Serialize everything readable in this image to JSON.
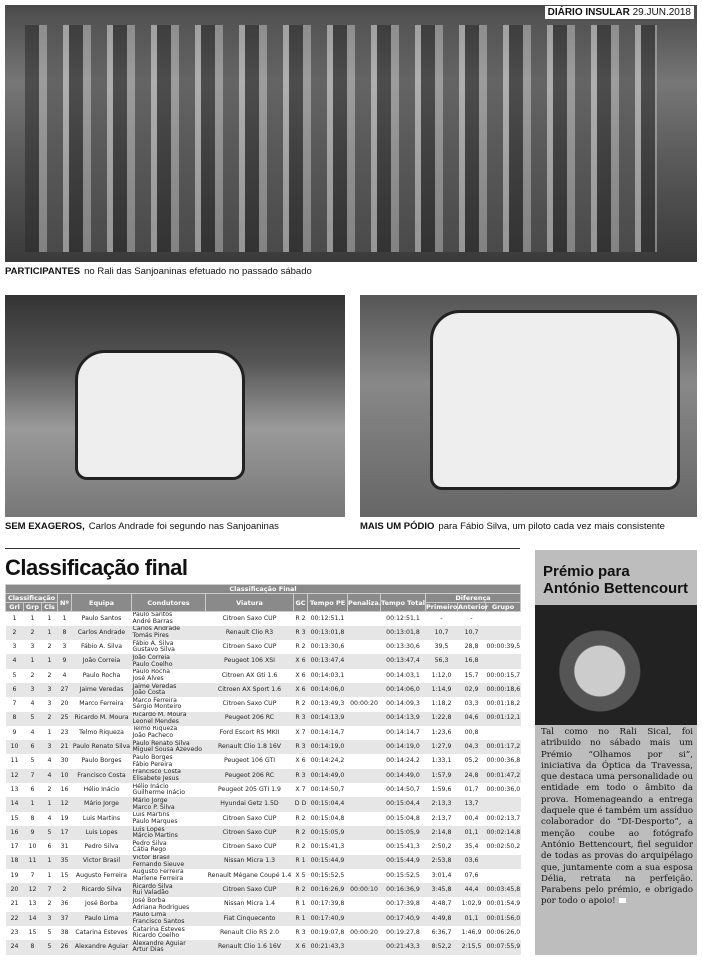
{
  "masthead": {
    "name": "DIÁRIO INSULAR",
    "date": "29.JUN.2018"
  },
  "captions": {
    "top": {
      "lead": "PARTICIPANTES",
      "text": "no Rali das Sanjoaninas efetuado no passado sábado"
    },
    "left": {
      "lead": "SEM EXAGEROS,",
      "text": "Carlos Andrade foi segundo nas Sanjoaninas"
    },
    "right": {
      "lead": "MAIS UM PÓDIO",
      "text": "para Fábio Silva, um piloto cada vez mais consistente"
    }
  },
  "section_title": "Classificação final",
  "table": {
    "title": "Classificação Final",
    "group_headers": {
      "classificacao": "Classificação",
      "diferenca": "Diferença"
    },
    "headers": [
      "Grl",
      "Grp",
      "Cls",
      "Nº",
      "Equipa",
      "Condutores",
      "Viatura",
      "GC",
      "Tempo PE",
      "Penaliza.",
      "Tempo Total",
      "Primeiro",
      "Anterior",
      "Grupo"
    ],
    "rows": [
      [
        "1",
        "1",
        "1",
        "1",
        "Paulo Santos",
        "Paulo Santos|André Barras",
        "Citroen Saxo CUP",
        "R 2",
        "00:12:51,1",
        "",
        "00:12:51,1",
        "-",
        "-",
        ""
      ],
      [
        "2",
        "2",
        "1",
        "8",
        "Carlos Andrade",
        "Carlos Andrade|Tomás Pires",
        "Renault Clio R3",
        "R 3",
        "00:13:01,8",
        "",
        "00:13:01,8",
        "10,7",
        "10,7",
        ""
      ],
      [
        "3",
        "3",
        "2",
        "3",
        "Fábio A. Silva",
        "Fábio A. Silva|Gustavo Silva",
        "Citroen Saxo CUP",
        "R 2",
        "00:13:30,6",
        "",
        "00:13:30,6",
        "39,5",
        "28,8",
        "00:00:39,5"
      ],
      [
        "4",
        "1",
        "1",
        "9",
        "João Correia",
        "João Correia|Paulo Coelho",
        "Peugeot 106 XSI",
        "X 6",
        "00:13:47,4",
        "",
        "00:13:47,4",
        "56,3",
        "16,8",
        ""
      ],
      [
        "5",
        "2",
        "2",
        "4",
        "Paulo Rocha",
        "Paulo Rocha|José Alves",
        "Citroen AX Gti 1.6",
        "X 6",
        "00:14:03,1",
        "",
        "00:14:03,1",
        "1:12,0",
        "15,7",
        "00:00:15,7"
      ],
      [
        "6",
        "3",
        "3",
        "27",
        "Jaime Veredas",
        "Jaime Veredas|João Costa",
        "Citroen AX Sport 1.6",
        "X 6",
        "00:14:06,0",
        "",
        "00:14:06,0",
        "1:14,9",
        "02,9",
        "00:00:18,6"
      ],
      [
        "7",
        "4",
        "3",
        "20",
        "Marco Ferreira",
        "Marco Ferreira|Sérgio Monteiro",
        "Citroen Saxo CUP",
        "R 2",
        "00:13:49,3",
        "00:00:20",
        "00:14:09,3",
        "1:18,2",
        "03,3",
        "00:01:18,2"
      ],
      [
        "8",
        "5",
        "2",
        "25",
        "Ricardo M. Moura",
        "Ricardo M. Moura|Leonel Mendes",
        "Peugeot 206 RC",
        "R 3",
        "00:14:13,9",
        "",
        "00:14:13,9",
        "1:22,8",
        "04,6",
        "00:01:12,1"
      ],
      [
        "9",
        "4",
        "1",
        "23",
        "Telmo Riqueza",
        "Telmo Riqueza|João Pacheco",
        "Ford Escort RS MKII",
        "X 7",
        "00:14:14,7",
        "",
        "00:14:14,7",
        "1:23,6",
        "00,8",
        ""
      ],
      [
        "10",
        "6",
        "3",
        "21",
        "Paulo Renato Silva",
        "Paulo Renato Silva|Miguel Sousa Azevedo",
        "Renault Clio 1.8 16V",
        "R 3",
        "00:14:19,0",
        "",
        "00:14:19,0",
        "1:27,9",
        "04,3",
        "00:01:17,2"
      ],
      [
        "11",
        "5",
        "4",
        "30",
        "Paulo Borges",
        "Paulo Borges|Fábio Pereira",
        "Peugeot 106 GTI",
        "X 6",
        "00:14:24,2",
        "",
        "00:14:24,2",
        "1:33,1",
        "05,2",
        "00:00:36,8"
      ],
      [
        "12",
        "7",
        "4",
        "10",
        "Francisco Costa",
        "Francisco Costa|Elisabete Jesus",
        "Peugeot 206 RC",
        "R 3",
        "00:14:49,0",
        "",
        "00:14:49,0",
        "1:57,9",
        "24,8",
        "00:01:47,2"
      ],
      [
        "13",
        "6",
        "2",
        "16",
        "Hélio Inácio",
        "Hélio Inácio|Guilherme Inácio",
        "Peugeot 205 GTI 1.9",
        "X 7",
        "00:14:50,7",
        "",
        "00:14:50,7",
        "1:59,6",
        "01,7",
        "00:00:36,0"
      ],
      [
        "14",
        "1",
        "1",
        "12",
        "Mário Jorge",
        "Mário Jorge|Marco P. Silva",
        "Hyundai Getz 1.5D",
        "D D",
        "00:15:04,4",
        "",
        "00:15:04,4",
        "2:13,3",
        "13,7",
        ""
      ],
      [
        "15",
        "8",
        "4",
        "19",
        "Luis Martins",
        "Luis Martins|Paulo Marques",
        "Citroen Saxo CUP",
        "R 2",
        "00:15:04,8",
        "",
        "00:15:04,8",
        "2:13,7",
        "00,4",
        "00:02:13,7"
      ],
      [
        "16",
        "9",
        "5",
        "17",
        "Luis Lopes",
        "Luis Lopes|Márcio Martins",
        "Citroen Saxo CUP",
        "R 2",
        "00:15:05,9",
        "",
        "00:15:05,9",
        "2:14,8",
        "01,1",
        "00:02:14,8"
      ],
      [
        "17",
        "10",
        "6",
        "31",
        "Pedro Silva",
        "Pedro Silva|Cátia Rego",
        "Citroen Saxo CUP",
        "R 2",
        "00:15:41,3",
        "",
        "00:15:41,3",
        "2:50,2",
        "35,4",
        "00:02:50,2"
      ],
      [
        "18",
        "11",
        "1",
        "35",
        "Victor Brasil",
        "Victor Brasil|Fernando Sieuve",
        "Nissan Micra 1.3",
        "R 1",
        "00:15:44,9",
        "",
        "00:15:44,9",
        "2:53,8",
        "03,6",
        ""
      ],
      [
        "19",
        "7",
        "1",
        "15",
        "Augusto Ferreira",
        "Augusto Ferreira|Marlene Ferreira",
        "Renault Mégane Coupé 1.4",
        "X 5",
        "00:15:52,5",
        "",
        "00:15:52,5",
        "3:01,4",
        "07,6",
        ""
      ],
      [
        "20",
        "12",
        "7",
        "2",
        "Ricardo Silva",
        "Ricardo Silva|Rui Valadão",
        "Citroen Saxo CUP",
        "R 2",
        "00:16:26,9",
        "00:00:10",
        "00:16:36,9",
        "3:45,8",
        "44,4",
        "00:03:45,8"
      ],
      [
        "21",
        "13",
        "2",
        "36",
        "José Borba",
        "José Borba|Adriana Rodrigues",
        "Nissan Micra 1.4",
        "R 1",
        "00:17:39,8",
        "",
        "00:17:39,8",
        "4:48,7",
        "1:02,9",
        "00:01:54,9"
      ],
      [
        "22",
        "14",
        "3",
        "37",
        "Paulo Lima",
        "Paulo Lima|Francisco Santos",
        "Fiat Cinquecento",
        "R 1",
        "00:17:40,9",
        "",
        "00:17:40,9",
        "4:49,8",
        "01,1",
        "00:01:56,0"
      ],
      [
        "23",
        "15",
        "5",
        "38",
        "Catarina Esteves",
        "Catarina Esteves|Ricardo Coelho",
        "Renault Clio RS 2.0",
        "R 3",
        "00:19:07,8",
        "00:00:20",
        "00:19:27,8",
        "6:36,7",
        "1:46,9",
        "00:06:26,0"
      ],
      [
        "24",
        "8",
        "5",
        "26",
        "Alexandre Aguiar",
        "Alexandre Aguiar|Artur Dias",
        "Renault Clio 1.6 16V",
        "X 6",
        "00:21:43,3",
        "",
        "00:21:43,3",
        "8:52,2",
        "2:15,5",
        "00:07:55,9"
      ]
    ]
  },
  "sidebar": {
    "title_line1": "Prémio para",
    "title_line2": "António Bettencourt",
    "body": "Tal como no Rali Sical, foi atribuido no sábado mais um Prémio “Olhamos por si”, iniciativa da Óptica da Travessa, que destaca uma personalidade ou entidade em todo o âmbito da prova. Homenageando a entrega daquele que é também um assíduo colaborador do “DI-Desporto”, a menção coube ao fotógrafo António Bettencourt, fiel seguidor de todas as provas do arquipélago que, juntamente com a sua esposa Délia, retrata na perfeição. Parabens pelo prémio, e obrigado por todo o apoio!"
  }
}
